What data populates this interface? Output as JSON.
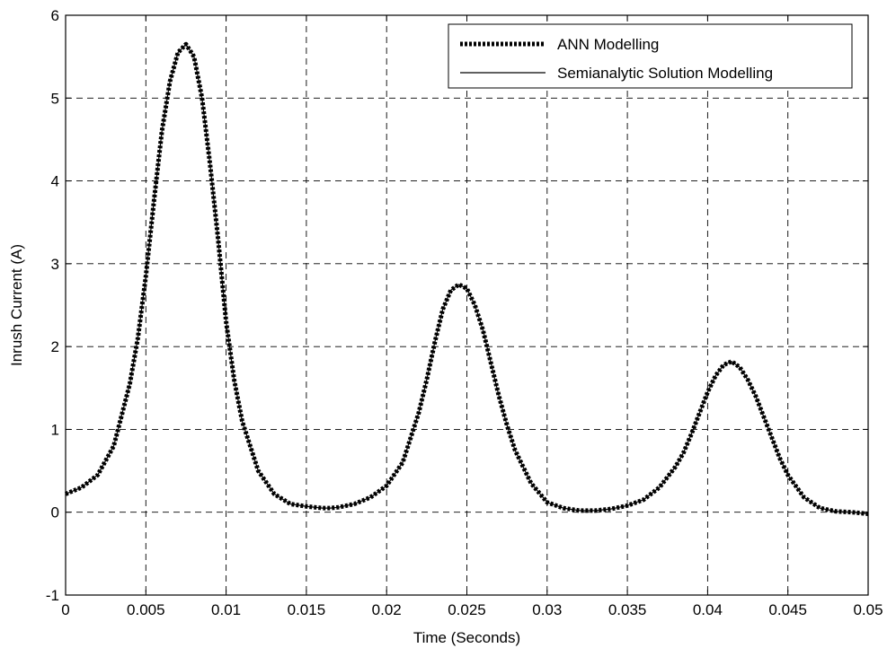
{
  "chart_data": {
    "type": "line",
    "title": "",
    "xlabel": "Time (Seconds)",
    "ylabel": "Inrush Current (A)",
    "xlim": [
      0,
      0.05
    ],
    "ylim": [
      -1,
      6
    ],
    "xticks": [
      0,
      0.005,
      0.01,
      0.015,
      0.02,
      0.025,
      0.03,
      0.035,
      0.04,
      0.045,
      0.05
    ],
    "xtick_labels": [
      "0",
      "0.005",
      "0.01",
      "0.015",
      "0.02",
      "0.025",
      "0.03",
      "0.035",
      "0.04",
      "0.045",
      "0.05"
    ],
    "yticks": [
      -1,
      0,
      1,
      2,
      3,
      4,
      5,
      6
    ],
    "ytick_labels": [
      "-1",
      "0",
      "1",
      "2",
      "3",
      "4",
      "5",
      "6"
    ],
    "grid": true,
    "legend_position": "top-right",
    "x": [
      0,
      0.001,
      0.002,
      0.003,
      0.004,
      0.0045,
      0.005,
      0.0055,
      0.006,
      0.0065,
      0.007,
      0.0075,
      0.008,
      0.0085,
      0.009,
      0.0095,
      0.01,
      0.0105,
      0.011,
      0.012,
      0.013,
      0.014,
      0.015,
      0.016,
      0.0165,
      0.017,
      0.018,
      0.019,
      0.02,
      0.021,
      0.022,
      0.0225,
      0.023,
      0.0235,
      0.024,
      0.0245,
      0.025,
      0.0255,
      0.026,
      0.0265,
      0.027,
      0.0275,
      0.028,
      0.029,
      0.03,
      0.031,
      0.032,
      0.033,
      0.034,
      0.035,
      0.036,
      0.037,
      0.038,
      0.0385,
      0.039,
      0.0395,
      0.04,
      0.0405,
      0.041,
      0.0415,
      0.042,
      0.0425,
      0.043,
      0.0435,
      0.044,
      0.0445,
      0.045,
      0.046,
      0.047,
      0.048,
      0.049,
      0.05
    ],
    "series": [
      {
        "name": "ANN Modelling",
        "color": "#000000",
        "style": "dotted-thick",
        "values": [
          0.22,
          0.3,
          0.45,
          0.8,
          1.55,
          2.1,
          2.85,
          3.75,
          4.6,
          5.2,
          5.55,
          5.65,
          5.5,
          5.0,
          4.2,
          3.3,
          2.3,
          1.6,
          1.1,
          0.5,
          0.22,
          0.1,
          0.07,
          0.05,
          0.05,
          0.06,
          0.1,
          0.18,
          0.32,
          0.6,
          1.2,
          1.6,
          2.05,
          2.45,
          2.68,
          2.75,
          2.7,
          2.5,
          2.2,
          1.8,
          1.4,
          1.05,
          0.75,
          0.35,
          0.12,
          0.05,
          0.02,
          0.02,
          0.04,
          0.08,
          0.15,
          0.3,
          0.55,
          0.72,
          0.95,
          1.2,
          1.45,
          1.65,
          1.78,
          1.82,
          1.75,
          1.6,
          1.4,
          1.15,
          0.9,
          0.65,
          0.45,
          0.18,
          0.05,
          0.01,
          0.0,
          -0.02
        ]
      },
      {
        "name": "Semianalytic Solution Modelling",
        "color": "#000000",
        "style": "solid-thin",
        "values": [
          0.22,
          0.3,
          0.45,
          0.8,
          1.55,
          2.1,
          2.85,
          3.75,
          4.6,
          5.2,
          5.55,
          5.65,
          5.5,
          5.0,
          4.2,
          3.3,
          2.3,
          1.6,
          1.1,
          0.5,
          0.22,
          0.1,
          0.07,
          0.05,
          0.05,
          0.06,
          0.1,
          0.18,
          0.32,
          0.6,
          1.2,
          1.6,
          2.05,
          2.45,
          2.68,
          2.75,
          2.7,
          2.5,
          2.2,
          1.8,
          1.4,
          1.05,
          0.75,
          0.35,
          0.12,
          0.05,
          0.02,
          0.02,
          0.04,
          0.08,
          0.15,
          0.3,
          0.55,
          0.72,
          0.95,
          1.2,
          1.45,
          1.65,
          1.78,
          1.82,
          1.75,
          1.6,
          1.4,
          1.15,
          0.9,
          0.65,
          0.45,
          0.18,
          0.05,
          0.01,
          0.0,
          -0.02
        ]
      }
    ]
  }
}
